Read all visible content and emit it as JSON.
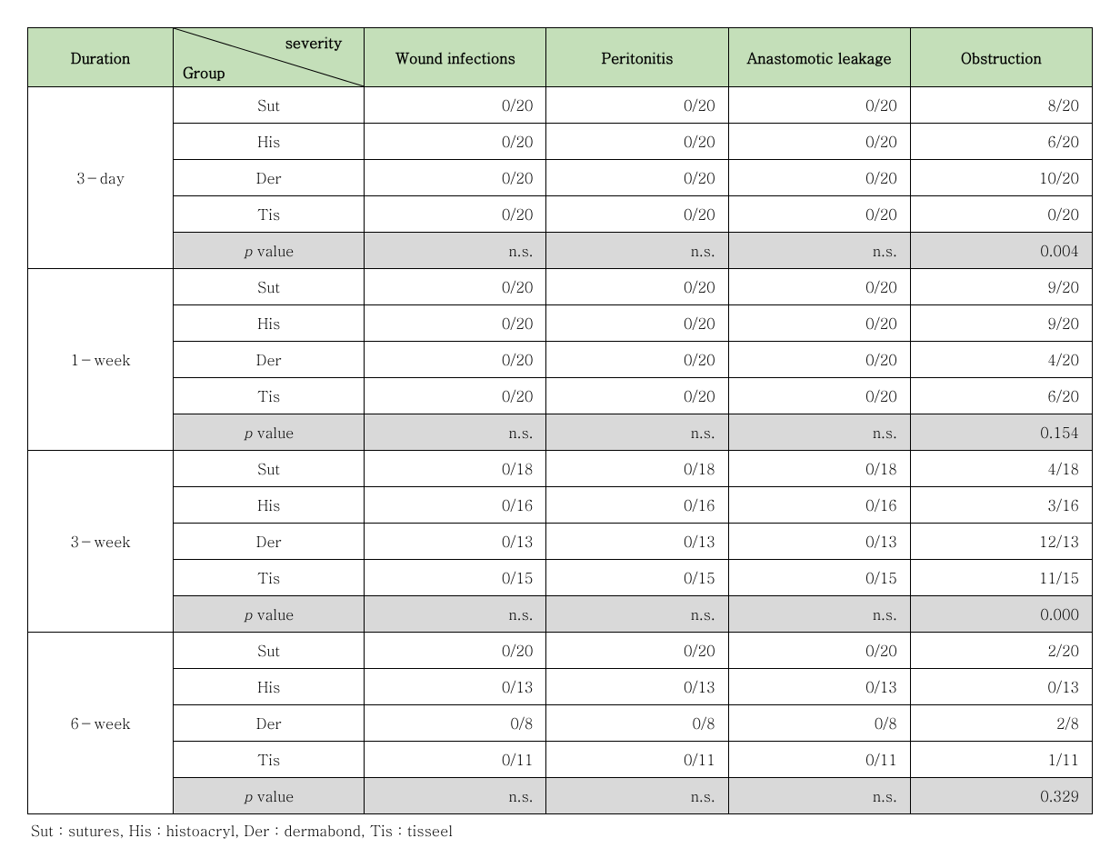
{
  "colors": {
    "header_bg": "#c4dfb9",
    "pvalue_bg": "#d9d9d9",
    "border": "#000000",
    "text": "#000000",
    "page_bg": "#ffffff"
  },
  "typography": {
    "base_fontsize_pt": 12,
    "header_bold": true
  },
  "columns": {
    "duration": "Duration",
    "diag_top": "severity",
    "diag_bottom": "Group",
    "c1": "Wound infections",
    "c2": "Peritonitis",
    "c3": "Anastomotic leakage",
    "c4": "Obstruction"
  },
  "pvalue_label_prefix": "p",
  "pvalue_label_suffix": " value",
  "sections": [
    {
      "duration": "3－day",
      "rows": [
        {
          "group": "Sut",
          "v": [
            "0/20",
            "0/20",
            "0/20",
            "8/20"
          ]
        },
        {
          "group": "His",
          "v": [
            "0/20",
            "0/20",
            "0/20",
            "6/20"
          ]
        },
        {
          "group": "Der",
          "v": [
            "0/20",
            "0/20",
            "0/20",
            "10/20"
          ]
        },
        {
          "group": "Tis",
          "v": [
            "0/20",
            "0/20",
            "0/20",
            "0/20"
          ]
        }
      ],
      "pvalue": [
        "n.s.",
        "n.s.",
        "n.s.",
        "0.004"
      ]
    },
    {
      "duration": "1－week",
      "rows": [
        {
          "group": "Sut",
          "v": [
            "0/20",
            "0/20",
            "0/20",
            "9/20"
          ]
        },
        {
          "group": "His",
          "v": [
            "0/20",
            "0/20",
            "0/20",
            "9/20"
          ]
        },
        {
          "group": "Der",
          "v": [
            "0/20",
            "0/20",
            "0/20",
            "4/20"
          ]
        },
        {
          "group": "Tis",
          "v": [
            "0/20",
            "0/20",
            "0/20",
            "6/20"
          ]
        }
      ],
      "pvalue": [
        "n.s.",
        "n.s.",
        "n.s.",
        "0.154"
      ]
    },
    {
      "duration": "3－week",
      "rows": [
        {
          "group": "Sut",
          "v": [
            "0/18",
            "0/18",
            "0/18",
            "4/18"
          ]
        },
        {
          "group": "His",
          "v": [
            "0/16",
            "0/16",
            "0/16",
            "3/16"
          ]
        },
        {
          "group": "Der",
          "v": [
            "0/13",
            "0/13",
            "0/13",
            "12/13"
          ]
        },
        {
          "group": "Tis",
          "v": [
            "0/15",
            "0/15",
            "0/15",
            "11/15"
          ]
        }
      ],
      "pvalue": [
        "n.s.",
        "n.s.",
        "n.s.",
        "0.000"
      ]
    },
    {
      "duration": "6－week",
      "rows": [
        {
          "group": "Sut",
          "v": [
            "0/20",
            "0/20",
            "0/20",
            "2/20"
          ]
        },
        {
          "group": "His",
          "v": [
            "0/13",
            "0/13",
            "0/13",
            "0/13"
          ]
        },
        {
          "group": "Der",
          "v": [
            "0/8",
            "0/8",
            "0/8",
            "2/8"
          ]
        },
        {
          "group": "Tis",
          "v": [
            "0/11",
            "0/11",
            "0/11",
            "1/11"
          ]
        }
      ],
      "pvalue": [
        "n.s.",
        "n.s.",
        "n.s.",
        "0.329"
      ]
    }
  ],
  "footnote": "Sut：sutures,  His：histoacryl,  Der：dermabond,  Tis：tisseel"
}
